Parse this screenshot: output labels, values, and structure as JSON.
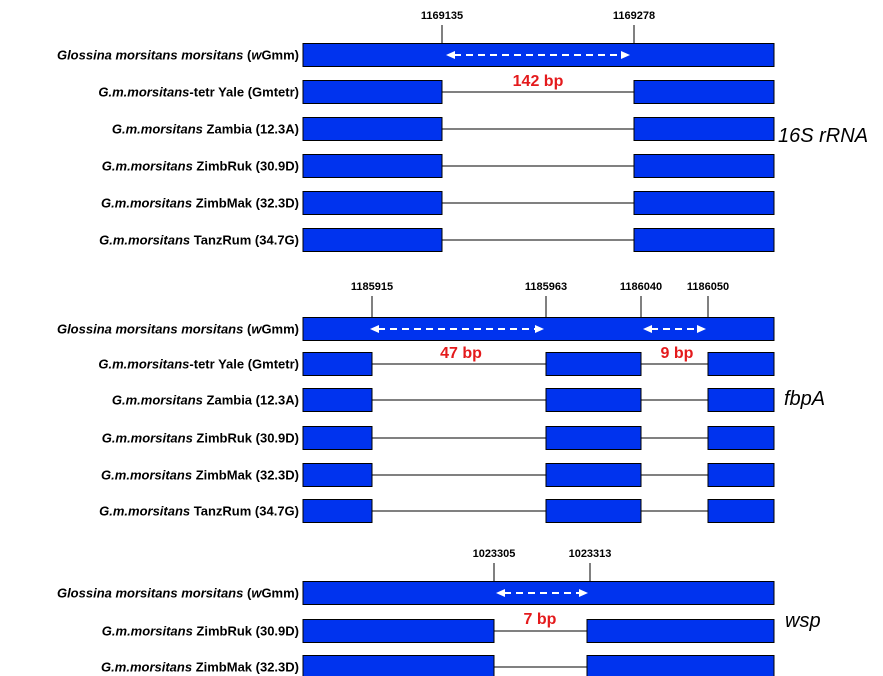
{
  "colors": {
    "bar": "#0033ee",
    "bar_stroke": "#000000",
    "deletion_label": "#e41a1c",
    "arrow": "#ffffff"
  },
  "panels": [
    {
      "gene": "16S rRNA",
      "coordinates": [
        "1169135",
        "1169278"
      ],
      "deletions": [
        "142 bp"
      ],
      "rows": [
        {
          "pre": "",
          "ital": "Glossina morsitans morsitans",
          "post": " (",
          "ital2": "w",
          "post2": "Gmm)"
        },
        {
          "pre": "",
          "ital": "G.m.morsitans",
          "post": "-tetr Yale (Gmtetr)",
          "ital2": "",
          "post2": ""
        },
        {
          "pre": "",
          "ital": "G.m.morsitans",
          "post": " Zambia (12.3A)",
          "ital2": "",
          "post2": ""
        },
        {
          "pre": "",
          "ital": "G.m.morsitans",
          "post": " ZimbRuk (30.9D)",
          "ital2": "",
          "post2": ""
        },
        {
          "pre": "",
          "ital": "G.m.morsitans",
          "post": " ZimbMak (32.3D)",
          "ital2": "",
          "post2": ""
        },
        {
          "pre": "",
          "ital": "G.m.morsitans",
          "post": " TanzRum (34.7G)",
          "ital2": "",
          "post2": ""
        }
      ]
    },
    {
      "gene": "fbpA",
      "coordinates": [
        "1185915",
        "1185963",
        "1186040",
        "1186050"
      ],
      "deletions": [
        "47 bp",
        "9 bp"
      ],
      "rows": [
        {
          "pre": "",
          "ital": "Glossina morsitans morsitans",
          "post": " (",
          "ital2": "w",
          "post2": "Gmm)"
        },
        {
          "pre": "",
          "ital": "G.m.morsitans",
          "post": "-tetr Yale (Gmtetr)",
          "ital2": "",
          "post2": ""
        },
        {
          "pre": "",
          "ital": "G.m.morsitans",
          "post": " Zambia (12.3A)",
          "ital2": "",
          "post2": ""
        },
        {
          "pre": "",
          "ital": "G.m.morsitans",
          "post": " ZimbRuk (30.9D)",
          "ital2": "",
          "post2": ""
        },
        {
          "pre": "",
          "ital": "G.m.morsitans",
          "post": " ZimbMak (32.3D)",
          "ital2": "",
          "post2": ""
        },
        {
          "pre": "",
          "ital": "G.m.morsitans",
          "post": " TanzRum (34.7G)",
          "ital2": "",
          "post2": ""
        }
      ]
    },
    {
      "gene": "wsp",
      "coordinates": [
        "1023305",
        "1023313"
      ],
      "deletions": [
        "7 bp"
      ],
      "rows": [
        {
          "pre": "",
          "ital": "Glossina morsitans morsitans",
          "post": " (",
          "ital2": "w",
          "post2": "Gmm)"
        },
        {
          "pre": "",
          "ital": "G.m.morsitans",
          "post": " ZimbRuk (30.9D)",
          "ital2": "",
          "post2": ""
        },
        {
          "pre": "",
          "ital": "G.m.morsitans",
          "post": " ZimbMak (32.3D)",
          "ital2": "",
          "post2": ""
        }
      ]
    }
  ]
}
